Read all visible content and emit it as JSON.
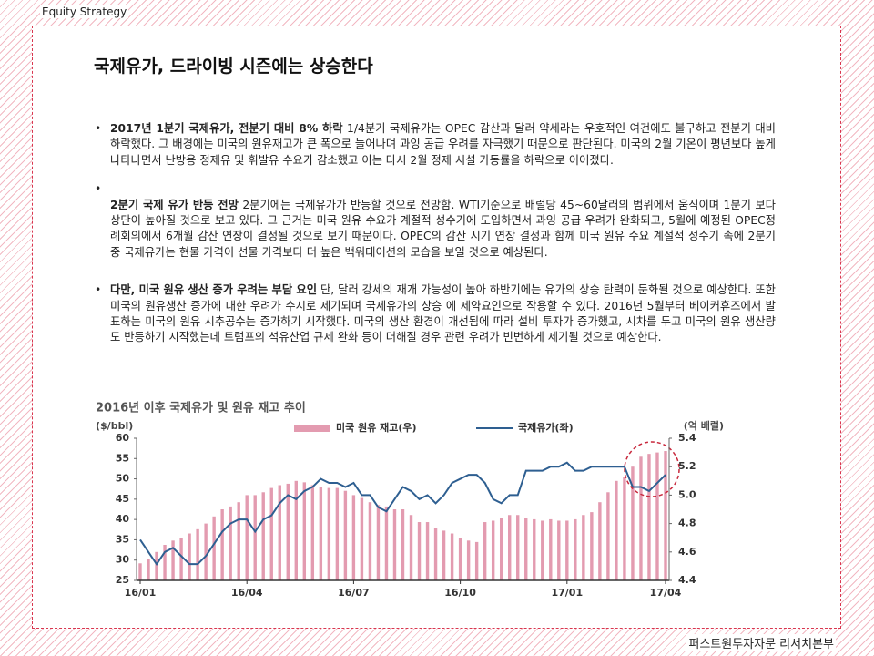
{
  "header": {
    "section": "Equity Strategy",
    "footer": "퍼스트원투자자문 리서치본부"
  },
  "title": "국제유가, 드라이빙 시즌에는 상승한다",
  "bullets": [
    {
      "lead": "2017년 1분기 국제유가, 전분기 대비 8% 하락",
      "text": " 1/4분기 국제유가는 OPEC 감산과 달러 약세라는 우호적인 여건에도 불구하고 전분기 대비 하락했다. 그 배경에는 미국의 원유재고가 큰 폭으로 늘어나며 과잉 공급 우려를 자극했기 때문으로 판단된다. 미국의 2월 기온이 평년보다 높게 나타나면서 난방용 정제유 및 휘발유 수요가 감소했고 이는 다시 2월 정제 시설 가동률을 하락으로 이어졌다."
    },
    {
      "lead": "2분기 국제 유가 반등 전망",
      "text": " 2분기에는 국제유가가 반등할 것으로 전망함. WTI기준으로 배럴당 45~60달러의 범위에서 움직이며 1분기 보다 상단이 높아질 것으로 보고 있다. 그 근거는 미국 원유 수요가 계절적 성수기에 도입하면서 과잉 공급 우려가 완화되고, 5월에 예정된 OPEC정례회의에서 6개월 감산 연장이 결정될 것으로 보기 때문이다. OPEC의 감산 시기 연장 결정과 함께 미국 원유 수요 계절적 성수기 속에 2분기 중 국제유가는 현물 가격이 선물 가격보다 더 높은 백워데이션의 모습을 보일 것으로 예상된다."
    },
    {
      "lead": "다만, 미국 원유 생산 증가 우려는 부담 요인",
      "text": " 단, 달러 강세의 재개 가능성이 높아 하반기에는 유가의 상승 탄력이 둔화될 것으로 예상한다. 또한 미국의 원유생산 증가에 대한 우려가 수시로 제기되며 국제유가의 상승 에 제약요인으로 작용할 수 있다. 2016년 5월부터 베이커휴즈에서 발표하는 미국의 원유 시추공수는 증가하기 시작했다. 미국의 생산 환경이 개선됨에 따라 설비 투자가 증가했고, 시차를 두고 미국의 원유 생산량도 반등하기 시작했는데 트럼프의 석유산업 규제 완화 등이 더해질 경우 관련 우려가 빈번하게 제기될 것으로 예상한다."
    }
  ],
  "chart_data": {
    "type": "combo",
    "title": "2016년 이후 국제유가 및 원유 재고 추이",
    "y_label": "($/bbl)",
    "y2_label": "(억 배럴)",
    "categories": [
      "16/01",
      null,
      null,
      null,
      null,
      null,
      null,
      null,
      null,
      null,
      null,
      null,
      null,
      "16/04",
      null,
      null,
      null,
      null,
      null,
      null,
      null,
      null,
      null,
      null,
      null,
      null,
      "16/07",
      null,
      null,
      null,
      null,
      null,
      null,
      null,
      null,
      null,
      null,
      null,
      null,
      "16/10",
      null,
      null,
      null,
      null,
      null,
      null,
      null,
      null,
      null,
      null,
      null,
      null,
      "17/01",
      null,
      null,
      null,
      null,
      null,
      null,
      null,
      null,
      null,
      null,
      null,
      "17/04"
    ],
    "series": [
      {
        "name": "미국 원유 재고(우)",
        "type": "bar",
        "axis": "y2",
        "color": "#e39bb0",
        "values": [
          4.52,
          4.55,
          4.6,
          4.65,
          4.68,
          4.7,
          4.73,
          4.76,
          4.8,
          4.85,
          4.9,
          4.92,
          4.95,
          5.0,
          5.0,
          5.02,
          5.05,
          5.07,
          5.08,
          5.1,
          5.09,
          5.07,
          5.06,
          5.05,
          5.05,
          5.03,
          5.0,
          4.98,
          4.95,
          4.93,
          4.92,
          4.9,
          4.9,
          4.86,
          4.81,
          4.81,
          4.77,
          4.75,
          4.73,
          4.7,
          4.68,
          4.67,
          4.81,
          4.82,
          4.84,
          4.86,
          4.86,
          4.84,
          4.83,
          4.82,
          4.83,
          4.82,
          4.82,
          4.83,
          4.86,
          4.88,
          4.95,
          5.02,
          5.1,
          5.13,
          5.2,
          5.27,
          5.29,
          5.3,
          5.31
        ]
      },
      {
        "name": "국제유가(좌)",
        "type": "line",
        "color": "#2e5f91",
        "values": [
          35,
          32,
          29,
          32,
          33,
          31,
          29,
          29,
          31,
          34,
          37,
          39,
          40,
          40,
          37,
          40,
          41,
          44,
          46,
          45,
          47,
          48,
          50,
          49,
          49,
          48,
          49,
          46,
          46,
          43,
          42,
          45,
          48,
          47,
          45,
          46,
          44,
          46,
          49,
          50,
          51,
          51,
          49,
          45,
          44,
          46,
          46,
          52,
          52,
          52,
          53,
          53,
          54,
          52,
          52,
          53,
          53,
          53,
          53,
          53,
          48,
          48,
          47,
          49,
          51
        ]
      }
    ],
    "ylim": [
      25,
      60
    ],
    "yticks": [
      25,
      30,
      35,
      40,
      45,
      50,
      55,
      60
    ],
    "y2lim": [
      4.4,
      5.4
    ],
    "y2ticks": [
      4.4,
      4.6,
      4.8,
      {
        "value": 5,
        "label": "5.0"
      },
      5.2,
      5.4
    ]
  }
}
